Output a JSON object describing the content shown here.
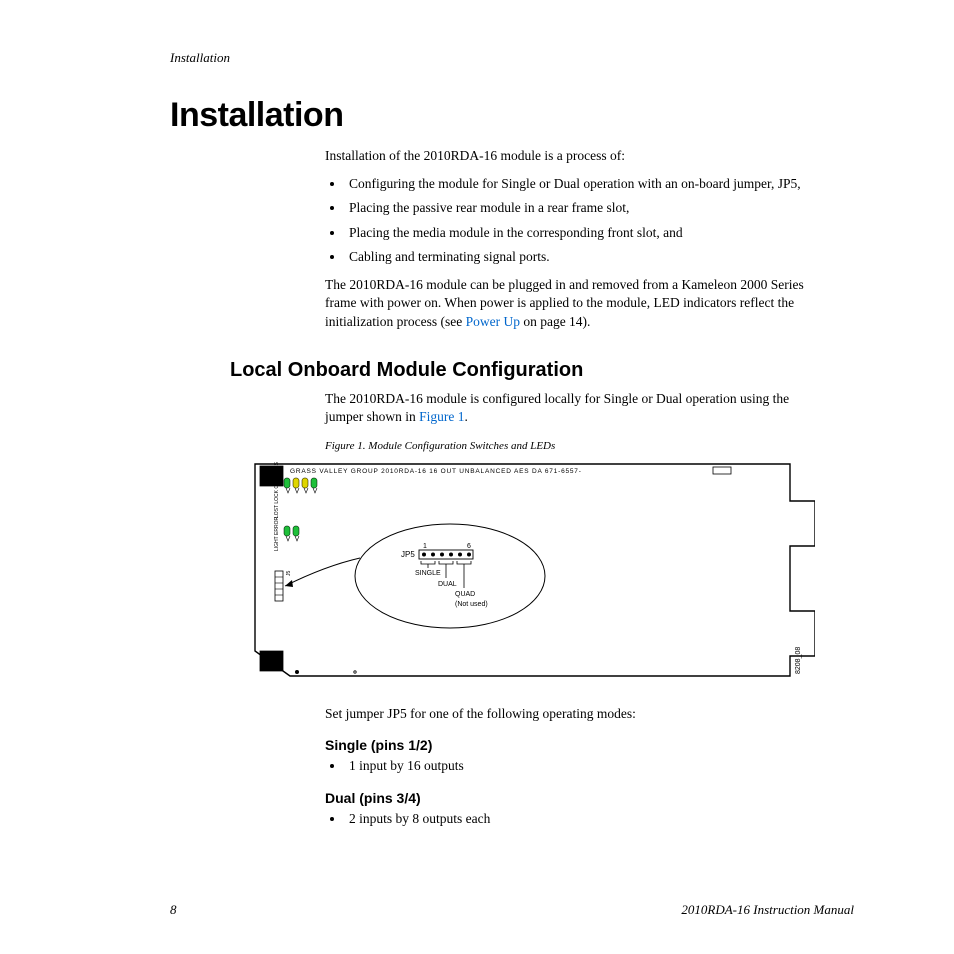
{
  "running_header": "Installation",
  "h1": "Installation",
  "intro": "Installation of the 2010RDA-16 module is a process of:",
  "bullets": [
    "Configuring the module for Single or Dual operation with an on-board jumper, JP5,",
    "Placing the passive rear module in a rear frame slot,",
    "Placing the media module in the corresponding front slot, and",
    "Cabling and terminating signal ports."
  ],
  "para2a": "The 2010RDA-16 module can be plugged in and removed from a Kameleon 2000 Series frame with power on. When power is applied to the module, LED indicators reflect the initialization process (see ",
  "para2_link": "Power Up",
  "para2b": " on page 14).",
  "h2": "Local Onboard Module Configuration",
  "para3a": "The 2010RDA-16 module is configured locally for Single or Dual operation using the jumper shown in ",
  "para3_link": "Figure 1",
  "para3b": ".",
  "figure_caption": "Figure 1.  Module Configuration Switches and LEDs",
  "figure": {
    "board_label": "GRASS VALLEY GROUP    2010RDA-16    16 OUT UNBALANCED AES DA    671-6557-",
    "side_ref": "8208_08",
    "jumper_label": "JP5",
    "pin_start": "1",
    "pin_end": "6",
    "mode_single": "SINGLE",
    "mode_dual": "DUAL",
    "mode_quad": "QUAD",
    "mode_quad_note": "(Not used)",
    "j5_label": "J5",
    "vert_label_1": "LOST LOCK COMP RES",
    "vert_label_2": "LIGHT ERROR",
    "led_colors": [
      "#1fbf3a",
      "#dfd500",
      "#dfd500",
      "#1fbf3a",
      "#1fbf3a",
      "#1fbf3a"
    ]
  },
  "para4": "Set jumper JP5 for one of the following operating modes:",
  "mode1_h": "Single (pins 1/2)",
  "mode1_b": "1 input by 16 outputs",
  "mode2_h": "Dual (pins 3/4)",
  "mode2_b": "2 inputs by 8 outputs each",
  "footer_page": "8",
  "footer_doc": "2010RDA-16 Instruction Manual"
}
